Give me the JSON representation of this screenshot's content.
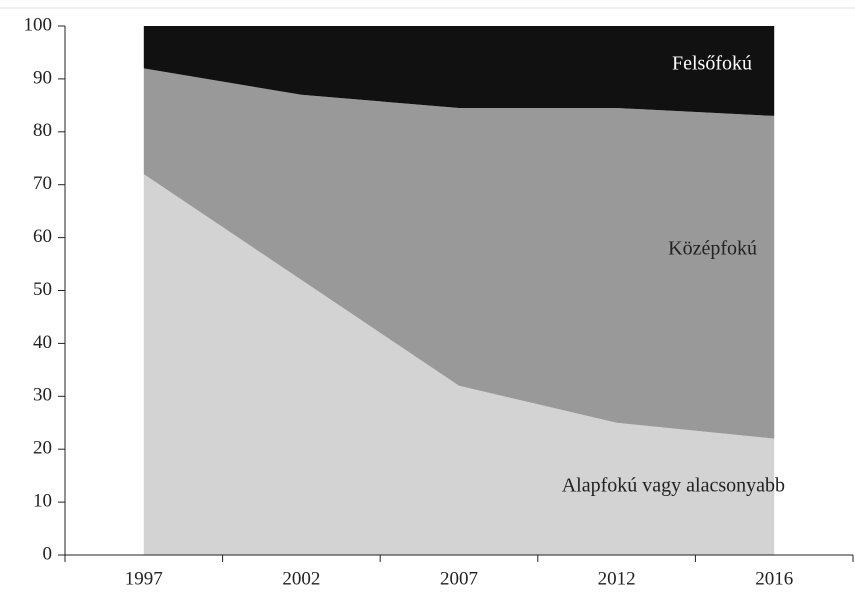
{
  "chart_data": {
    "type": "stacked_area",
    "categories": [
      "1997",
      "2002",
      "2007",
      "2012",
      "2016"
    ],
    "series": [
      {
        "name": "Alapfokú vagy alacsonyabb",
        "color": "#d3d3d3",
        "values": [
          72,
          52,
          32,
          25,
          22
        ]
      },
      {
        "name": "Középfokú",
        "color": "#999999",
        "values": [
          20,
          35,
          52.5,
          59.5,
          61
        ]
      },
      {
        "name": "Felsőfokú",
        "color": "#111111",
        "values": [
          8,
          13,
          15.5,
          15.5,
          17
        ]
      }
    ],
    "ylim": [
      0,
      100
    ],
    "yticks": [
      0,
      10,
      20,
      30,
      40,
      50,
      60,
      70,
      80,
      90,
      100
    ]
  }
}
